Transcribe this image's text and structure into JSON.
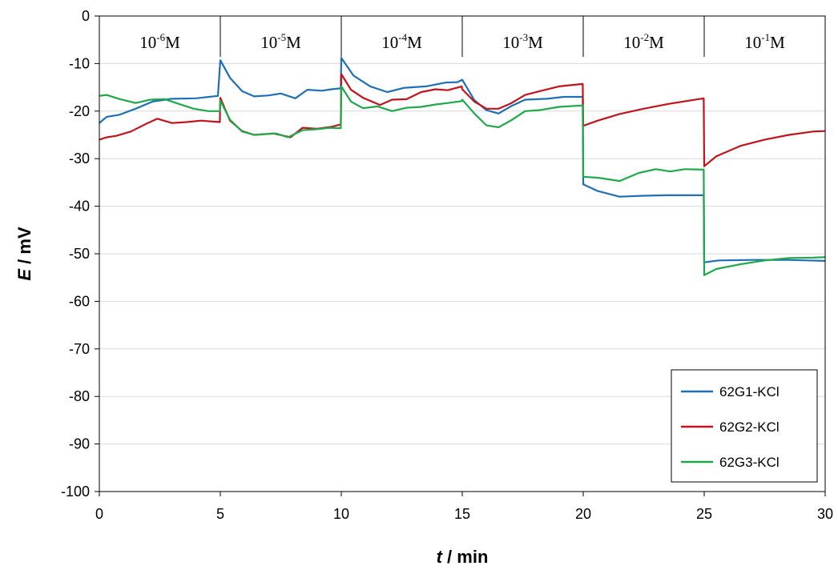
{
  "chart_data": {
    "type": "line",
    "xlabel": {
      "symbol": "t",
      "unit": " / min"
    },
    "ylabel": {
      "symbol": "E",
      "unit": " / mV"
    },
    "xlim": [
      0,
      30
    ],
    "ylim": [
      -100,
      0
    ],
    "xticks": [
      0,
      5,
      10,
      15,
      20,
      25,
      30
    ],
    "yticks": [
      0,
      -10,
      -20,
      -30,
      -40,
      -50,
      -60,
      -70,
      -80,
      -90,
      -100
    ],
    "grid": "horizontal",
    "legend_position": "bottom-right",
    "annotations": [
      {
        "base": "10",
        "exp": "-6",
        "unit": "M",
        "x": 2.5
      },
      {
        "base": "10",
        "exp": "-5",
        "unit": "M",
        "x": 7.5
      },
      {
        "base": "10",
        "exp": "-4",
        "unit": "M",
        "x": 12.5
      },
      {
        "base": "10",
        "exp": "-3",
        "unit": "M",
        "x": 17.5
      },
      {
        "base": "10",
        "exp": "-2",
        "unit": "M",
        "x": 22.5
      },
      {
        "base": "10",
        "exp": "-1",
        "unit": "M",
        "x": 27.5
      }
    ],
    "series": [
      {
        "name": "62G1-KCl",
        "color": "#1f6fb4",
        "points": [
          [
            0,
            -22.5
          ],
          [
            0.3,
            -21.2
          ],
          [
            0.8,
            -20.8
          ],
          [
            1.5,
            -19.5
          ],
          [
            2.2,
            -18
          ],
          [
            3,
            -17.4
          ],
          [
            4,
            -17.3
          ],
          [
            4.9,
            -16.8
          ],
          [
            5,
            -9.3
          ],
          [
            5.4,
            -13
          ],
          [
            5.9,
            -15.8
          ],
          [
            6.4,
            -16.9
          ],
          [
            7,
            -16.7
          ],
          [
            7.5,
            -16.3
          ],
          [
            8.1,
            -17.3
          ],
          [
            8.6,
            -15.5
          ],
          [
            9.2,
            -15.7
          ],
          [
            9.6,
            -15.4
          ],
          [
            9.98,
            -15.2
          ],
          [
            10,
            -8.8
          ],
          [
            10.5,
            -12.5
          ],
          [
            11.2,
            -14.8
          ],
          [
            11.9,
            -16
          ],
          [
            12.6,
            -15.1
          ],
          [
            13.5,
            -14.8
          ],
          [
            14.3,
            -14
          ],
          [
            14.8,
            -13.9
          ],
          [
            15,
            -13.4
          ],
          [
            15.5,
            -17.7
          ],
          [
            16,
            -19.8
          ],
          [
            16.5,
            -20.5
          ],
          [
            17,
            -19
          ],
          [
            17.6,
            -17.6
          ],
          [
            18.5,
            -17.4
          ],
          [
            19.2,
            -17
          ],
          [
            19.98,
            -17
          ],
          [
            20,
            -35.4
          ],
          [
            20.6,
            -36.8
          ],
          [
            21.5,
            -38
          ],
          [
            22.5,
            -37.8
          ],
          [
            23.5,
            -37.7
          ],
          [
            24.98,
            -37.7
          ],
          [
            25,
            -51.8
          ],
          [
            25.6,
            -51.4
          ],
          [
            27,
            -51.3
          ],
          [
            28.5,
            -51.3
          ],
          [
            30,
            -51.5
          ]
        ]
      },
      {
        "name": "62G2-KCl",
        "color": "#c0141c",
        "points": [
          [
            0,
            -26
          ],
          [
            0.3,
            -25.5
          ],
          [
            0.7,
            -25.2
          ],
          [
            1.3,
            -24.3
          ],
          [
            2,
            -22.5
          ],
          [
            2.4,
            -21.6
          ],
          [
            3,
            -22.5
          ],
          [
            3.6,
            -22.3
          ],
          [
            4.2,
            -22
          ],
          [
            4.98,
            -22.3
          ],
          [
            5,
            -17.2
          ],
          [
            5.4,
            -22
          ],
          [
            5.9,
            -24.2
          ],
          [
            6.4,
            -25
          ],
          [
            7.2,
            -24.7
          ],
          [
            7.9,
            -25.5
          ],
          [
            8.4,
            -23.5
          ],
          [
            9,
            -23.7
          ],
          [
            9.6,
            -23.3
          ],
          [
            9.98,
            -22.8
          ],
          [
            10,
            -12.2
          ],
          [
            10.4,
            -15.5
          ],
          [
            10.9,
            -17.2
          ],
          [
            11.6,
            -18.7
          ],
          [
            12.1,
            -17.6
          ],
          [
            12.7,
            -17.5
          ],
          [
            13.3,
            -16
          ],
          [
            13.9,
            -15.4
          ],
          [
            14.4,
            -15.6
          ],
          [
            14.98,
            -14.8
          ],
          [
            15,
            -15.4
          ],
          [
            15.5,
            -18
          ],
          [
            16,
            -19.5
          ],
          [
            16.5,
            -19.5
          ],
          [
            17,
            -18.4
          ],
          [
            17.6,
            -16.6
          ],
          [
            18.2,
            -15.8
          ],
          [
            19,
            -14.8
          ],
          [
            19.98,
            -14.3
          ],
          [
            20,
            -23.1
          ],
          [
            20.6,
            -22
          ],
          [
            21.5,
            -20.6
          ],
          [
            22.5,
            -19.5
          ],
          [
            23.5,
            -18.5
          ],
          [
            24.98,
            -17.3
          ],
          [
            25,
            -31.6
          ],
          [
            25.5,
            -29.5
          ],
          [
            26.5,
            -27.3
          ],
          [
            27.5,
            -26
          ],
          [
            28.5,
            -25
          ],
          [
            29.5,
            -24.3
          ],
          [
            30,
            -24.2
          ]
        ]
      },
      {
        "name": "62G3-KCl",
        "color": "#1fa84a",
        "points": [
          [
            0,
            -16.8
          ],
          [
            0.3,
            -16.6
          ],
          [
            0.8,
            -17.4
          ],
          [
            1.5,
            -18.3
          ],
          [
            2.1,
            -17.6
          ],
          [
            2.7,
            -17.5
          ],
          [
            3.3,
            -18.5
          ],
          [
            3.9,
            -19.5
          ],
          [
            4.5,
            -20
          ],
          [
            4.98,
            -20
          ],
          [
            5,
            -17.8
          ],
          [
            5.4,
            -21.8
          ],
          [
            5.9,
            -24.3
          ],
          [
            6.4,
            -25
          ],
          [
            7.3,
            -24.7
          ],
          [
            7.8,
            -25.5
          ],
          [
            8.4,
            -24
          ],
          [
            9,
            -23.8
          ],
          [
            9.5,
            -23.5
          ],
          [
            9.98,
            -23.6
          ],
          [
            10,
            -14.8
          ],
          [
            10.4,
            -18
          ],
          [
            10.9,
            -19.4
          ],
          [
            11.5,
            -19
          ],
          [
            12.1,
            -20
          ],
          [
            12.7,
            -19.3
          ],
          [
            13.3,
            -19.1
          ],
          [
            13.9,
            -18.6
          ],
          [
            14.4,
            -18.3
          ],
          [
            14.98,
            -17.9
          ],
          [
            15,
            -17.6
          ],
          [
            15.5,
            -20.5
          ],
          [
            16,
            -23
          ],
          [
            16.5,
            -23.4
          ],
          [
            17,
            -22
          ],
          [
            17.6,
            -20
          ],
          [
            18.2,
            -19.8
          ],
          [
            19,
            -19.1
          ],
          [
            19.98,
            -18.8
          ],
          [
            20,
            -33.8
          ],
          [
            20.6,
            -34
          ],
          [
            21.5,
            -34.7
          ],
          [
            22.3,
            -33
          ],
          [
            23,
            -32.2
          ],
          [
            23.6,
            -32.7
          ],
          [
            24.2,
            -32.2
          ],
          [
            24.98,
            -32.3
          ],
          [
            25,
            -54.5
          ],
          [
            25.5,
            -53.2
          ],
          [
            26.5,
            -52.2
          ],
          [
            27.5,
            -51.4
          ],
          [
            28.5,
            -50.9
          ],
          [
            29.5,
            -50.8
          ],
          [
            30,
            -50.7
          ]
        ]
      }
    ]
  }
}
